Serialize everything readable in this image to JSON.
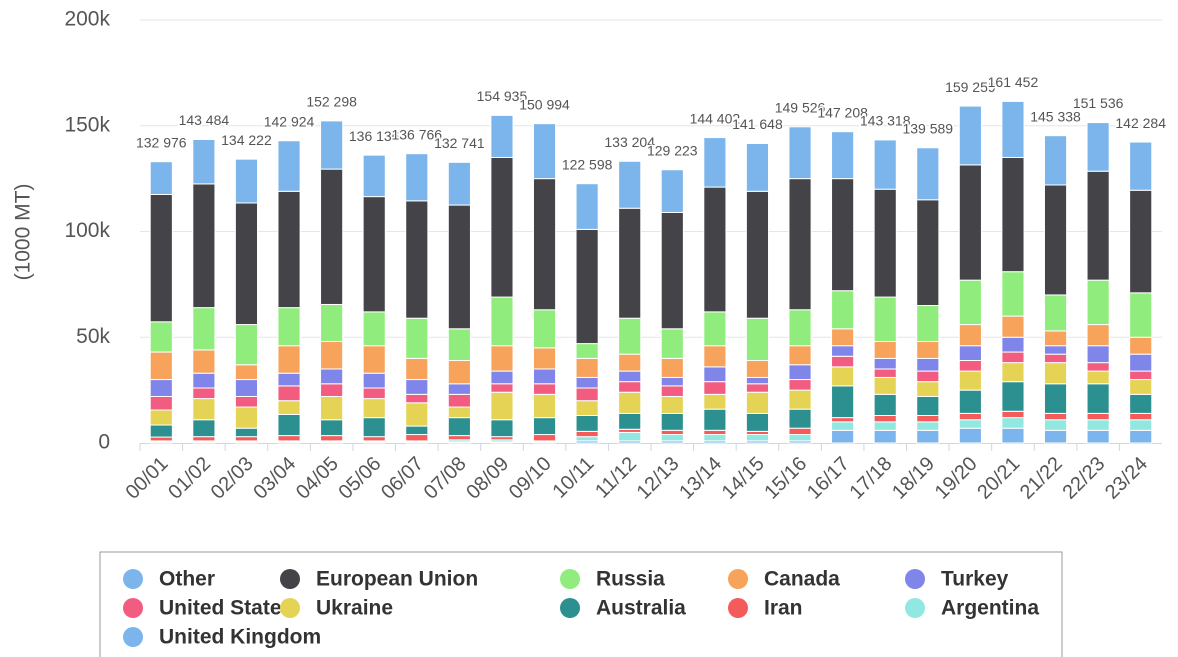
{
  "chart_data": {
    "type": "stacked_bar",
    "y_axis_title": "(1000 MT)",
    "categories": [
      "00/01",
      "01/02",
      "02/03",
      "03/04",
      "04/05",
      "05/06",
      "06/07",
      "07/08",
      "08/09",
      "09/10",
      "10/11",
      "11/12",
      "12/13",
      "13/14",
      "14/15",
      "15/16",
      "16/17",
      "17/18",
      "18/19",
      "19/20",
      "20/21",
      "21/22",
      "22/23",
      "23/24"
    ],
    "ylim": [
      0,
      200000
    ],
    "yticks": [
      0,
      {
        "value": 50000,
        "label": "50k"
      },
      {
        "value": 100000,
        "label": "100k"
      },
      {
        "value": 150000,
        "label": "150k"
      },
      {
        "value": 200000,
        "label": "200k"
      }
    ],
    "grid": true,
    "legend": "bottom",
    "totals": [
      132976,
      143484,
      134222,
      142924,
      152298,
      136136,
      136766,
      132741,
      154935,
      150994,
      122598,
      133204,
      129223,
      144402,
      141648,
      149526,
      147208,
      143318,
      139589,
      159259,
      161452,
      145338,
      151536,
      142284
    ],
    "total_labels": [
      "132 976",
      "143 484",
      "134 222",
      "142 924",
      "152 298",
      "136 136",
      "136 766",
      "132 741",
      "154 935",
      "150 994",
      "122 598",
      "133 204",
      "129 223",
      "144 402",
      "141 648",
      "149 526",
      "147 208",
      "143 318",
      "139 589",
      "159 259",
      "161 452",
      "145 338",
      "151 536",
      "142 284"
    ],
    "series": [
      {
        "name": "Other",
        "color": "#7cb5ec",
        "values": [
          15500,
          21000,
          20700,
          23900,
          22800,
          19600,
          22300,
          20200,
          19900,
          26000,
          21600,
          22200,
          20200,
          23400,
          22600,
          24500,
          22200,
          23300,
          24600,
          27800,
          26500,
          23300,
          23000,
          22800
        ]
      },
      {
        "name": "European Union",
        "color": "#434348",
        "values": [
          60200,
          58500,
          57500,
          55000,
          64000,
          54500,
          55500,
          58500,
          66000,
          62000,
          54000,
          52000,
          55000,
          59000,
          60000,
          62000,
          53000,
          51000,
          50000,
          54500,
          54000,
          52000,
          51500,
          48500
        ]
      },
      {
        "name": "Russia",
        "color": "#90ed7d",
        "values": [
          14300,
          20000,
          19000,
          18000,
          17500,
          16000,
          19000,
          15000,
          23000,
          18000,
          7000,
          17000,
          14000,
          16000,
          20000,
          17000,
          18000,
          21000,
          17000,
          21000,
          21000,
          17000,
          21000,
          21000
        ]
      },
      {
        "name": "Canada",
        "color": "#f7a35c",
        "values": [
          13000,
          11000,
          7000,
          13000,
          13000,
          13000,
          10000,
          11000,
          12000,
          10000,
          9000,
          8000,
          9000,
          10000,
          8000,
          9000,
          8000,
          8000,
          8000,
          10000,
          10000,
          7000,
          10000,
          8000
        ]
      },
      {
        "name": "Turkey",
        "color": "#8085e9",
        "values": [
          8000,
          7000,
          8000,
          6000,
          7000,
          7000,
          7000,
          5000,
          6000,
          7000,
          5000,
          5000,
          4000,
          7000,
          3000,
          7000,
          5000,
          5000,
          6000,
          7000,
          7000,
          4000,
          8000,
          8000
        ]
      },
      {
        "name": "United States",
        "color": "#f15c80",
        "values": [
          6400,
          5000,
          5000,
          7000,
          6000,
          5000,
          4000,
          6000,
          4000,
          5000,
          6000,
          5000,
          5000,
          6000,
          4000,
          5000,
          5000,
          4000,
          5000,
          5000,
          5000,
          4000,
          4000,
          4000
        ]
      },
      {
        "name": "Ukraine",
        "color": "#e4d354",
        "values": [
          7100,
          10000,
          10000,
          6500,
          11000,
          9000,
          11000,
          5000,
          13000,
          11000,
          7000,
          10000,
          8000,
          7000,
          10000,
          9000,
          9000,
          8000,
          7000,
          9000,
          9000,
          10000,
          6000,
          7000
        ]
      },
      {
        "name": "Australia",
        "color": "#2b908f",
        "values": [
          5700,
          8000,
          4000,
          10000,
          7500,
          9000,
          4000,
          8500,
          8000,
          8000,
          7500,
          7500,
          8000,
          10000,
          8500,
          9000,
          15000,
          10000,
          9000,
          11000,
          14000,
          14000,
          14000,
          9000
        ]
      },
      {
        "name": "Iran",
        "color": "#f45b5b",
        "values": [
          1800,
          2000,
          2000,
          2500,
          2500,
          2000,
          3000,
          2000,
          1500,
          3000,
          2500,
          1500,
          2000,
          2000,
          1500,
          3000,
          2000,
          3000,
          3000,
          3000,
          3000,
          3000,
          3000,
          3000
        ]
      },
      {
        "name": "Argentina",
        "color": "#91e8e1",
        "values": [
          500,
          500,
          500,
          500,
          500,
          500,
          500,
          1000,
          1000,
          500,
          2000,
          4000,
          3000,
          3000,
          3000,
          3000,
          4000,
          4000,
          4000,
          4000,
          5000,
          5000,
          5000,
          5000
        ]
      },
      {
        "name": "United Kingdom",
        "color": "#7cb5ec",
        "values": [
          500,
          500,
          500,
          500,
          500,
          500,
          500,
          500,
          500,
          500,
          1000,
          1000,
          1000,
          1000,
          1000,
          1000,
          6000,
          6000,
          6000,
          7000,
          7000,
          6000,
          6000,
          6000
        ]
      }
    ]
  }
}
